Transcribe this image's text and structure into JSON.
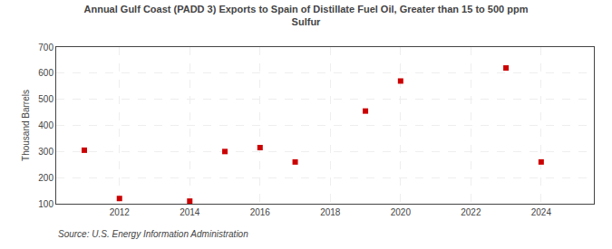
{
  "chart_data": {
    "type": "scatter",
    "title": "Annual Gulf Coast (PADD 3) Exports to Spain of Distillate Fuel Oil, Greater than 15 to 500 ppm\nSulfur",
    "ylabel": "Thousand Barrels",
    "annotations": [
      "Source: U.S. Energy Information Administration"
    ],
    "x": [
      2011,
      2012,
      2014,
      2015,
      2016,
      2017,
      2019,
      2020,
      2023,
      2024
    ],
    "values": [
      305,
      120,
      110,
      300,
      315,
      260,
      455,
      570,
      620,
      260
    ],
    "color": "#cc0000",
    "marker": "square",
    "xlim": [
      2010.2,
      2025.5
    ],
    "ylim": [
      100,
      700
    ],
    "xticks": [
      2012,
      2014,
      2016,
      2018,
      2020,
      2022,
      2024
    ],
    "yticks": [
      100,
      200,
      300,
      400,
      500,
      600,
      700
    ],
    "grid": true
  }
}
